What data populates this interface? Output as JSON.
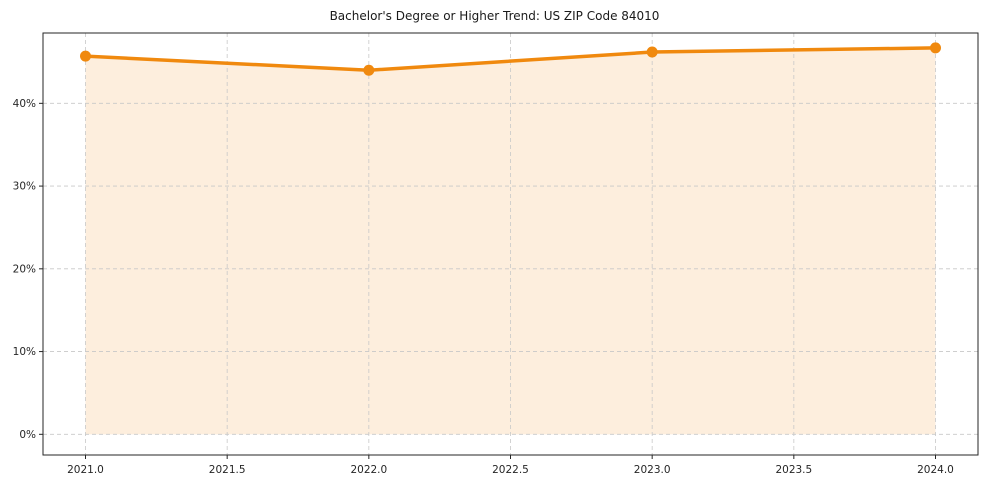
{
  "chart_data": {
    "type": "line",
    "title": "Bachelor's Degree or Higher Trend: US ZIP Code 84010",
    "x": [
      2021,
      2022,
      2023,
      2024
    ],
    "values": [
      45.7,
      44.0,
      46.2,
      46.7
    ],
    "xlim": [
      2020.85,
      2024.15
    ],
    "ylim": [
      -2.5,
      48.5
    ],
    "xtick_values": [
      2021.0,
      2021.5,
      2022.0,
      2022.5,
      2023.0,
      2023.5,
      2024.0
    ],
    "xtick_labels": [
      "2021.0",
      "2021.5",
      "2022.0",
      "2022.5",
      "2023.0",
      "2023.5",
      "2024.0"
    ],
    "ytick_values": [
      0,
      10,
      20,
      30,
      40
    ],
    "ytick_labels": [
      "0%",
      "10%",
      "20%",
      "30%",
      "40%"
    ],
    "grid": true,
    "legend": false,
    "colors": {
      "line": "#f0890e",
      "marker": "#f0890e",
      "fill": "#fdeedd",
      "grid": "#c8c8c8",
      "spine": "#262626",
      "text": "#262626"
    }
  }
}
